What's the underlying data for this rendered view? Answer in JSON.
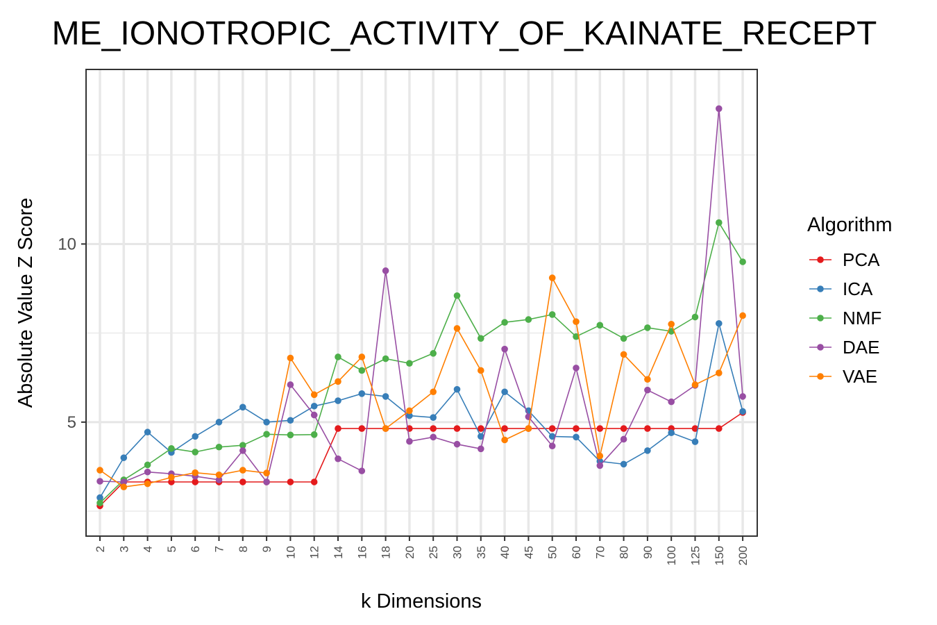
{
  "chart_data": {
    "type": "line",
    "title": "ME_IONOTROPIC_ACTIVITY_OF_KAINATE_RECEPT",
    "xlabel": "k Dimensions",
    "ylabel": "Absolute Value Z Score",
    "categories": [
      "2",
      "3",
      "4",
      "5",
      "6",
      "7",
      "8",
      "9",
      "10",
      "12",
      "14",
      "16",
      "18",
      "20",
      "25",
      "30",
      "35",
      "40",
      "45",
      "50",
      "60",
      "70",
      "80",
      "90",
      "100",
      "125",
      "150",
      "200"
    ],
    "ylim": [
      1.8,
      14.9
    ],
    "yticks": [
      5,
      10
    ],
    "y_minor_ticks": [
      2.5,
      7.5,
      12.5
    ],
    "grid": true,
    "legend": {
      "title": "Algorithm",
      "position": "right"
    },
    "series": [
      {
        "name": "PCA",
        "color": "#E41A1C",
        "values": [
          2.65,
          3.32,
          3.32,
          3.32,
          3.32,
          3.32,
          3.32,
          3.32,
          3.32,
          3.32,
          4.82,
          4.82,
          4.82,
          4.82,
          4.82,
          4.82,
          4.82,
          4.82,
          4.82,
          4.82,
          4.82,
          4.82,
          4.82,
          4.82,
          4.82,
          4.82,
          4.82,
          5.27
        ]
      },
      {
        "name": "ICA",
        "color": "#377EB8",
        "values": [
          2.88,
          4.0,
          4.72,
          4.15,
          4.6,
          5.0,
          5.42,
          5.0,
          5.05,
          5.45,
          5.6,
          5.8,
          5.72,
          5.18,
          5.13,
          5.92,
          4.6,
          5.85,
          5.32,
          4.6,
          4.58,
          3.9,
          3.82,
          4.2,
          4.7,
          4.45,
          7.77,
          5.3
        ]
      },
      {
        "name": "NMF",
        "color": "#4DAF4A",
        "values": [
          2.73,
          3.38,
          3.8,
          4.26,
          4.16,
          4.3,
          4.35,
          4.66,
          4.64,
          4.65,
          6.83,
          6.45,
          6.78,
          6.65,
          6.93,
          8.55,
          7.35,
          7.8,
          7.88,
          8.02,
          7.4,
          7.72,
          7.35,
          7.65,
          7.55,
          7.95,
          10.6,
          9.5
        ]
      },
      {
        "name": "DAE",
        "color": "#984EA3",
        "values": [
          3.34,
          3.32,
          3.6,
          3.55,
          3.48,
          3.38,
          4.2,
          3.32,
          6.05,
          5.2,
          3.97,
          3.63,
          9.25,
          4.46,
          4.58,
          4.38,
          4.25,
          7.05,
          5.15,
          4.33,
          6.52,
          3.78,
          4.52,
          5.9,
          5.57,
          6.03,
          13.8,
          5.72
        ]
      },
      {
        "name": "VAE",
        "color": "#FF7F00",
        "values": [
          3.65,
          3.18,
          3.27,
          3.45,
          3.58,
          3.52,
          3.65,
          3.57,
          6.8,
          5.77,
          6.14,
          6.83,
          4.82,
          5.32,
          5.85,
          7.63,
          6.45,
          4.5,
          4.82,
          9.05,
          7.82,
          4.05,
          6.9,
          6.2,
          7.75,
          6.05,
          6.38,
          7.99
        ]
      }
    ]
  }
}
